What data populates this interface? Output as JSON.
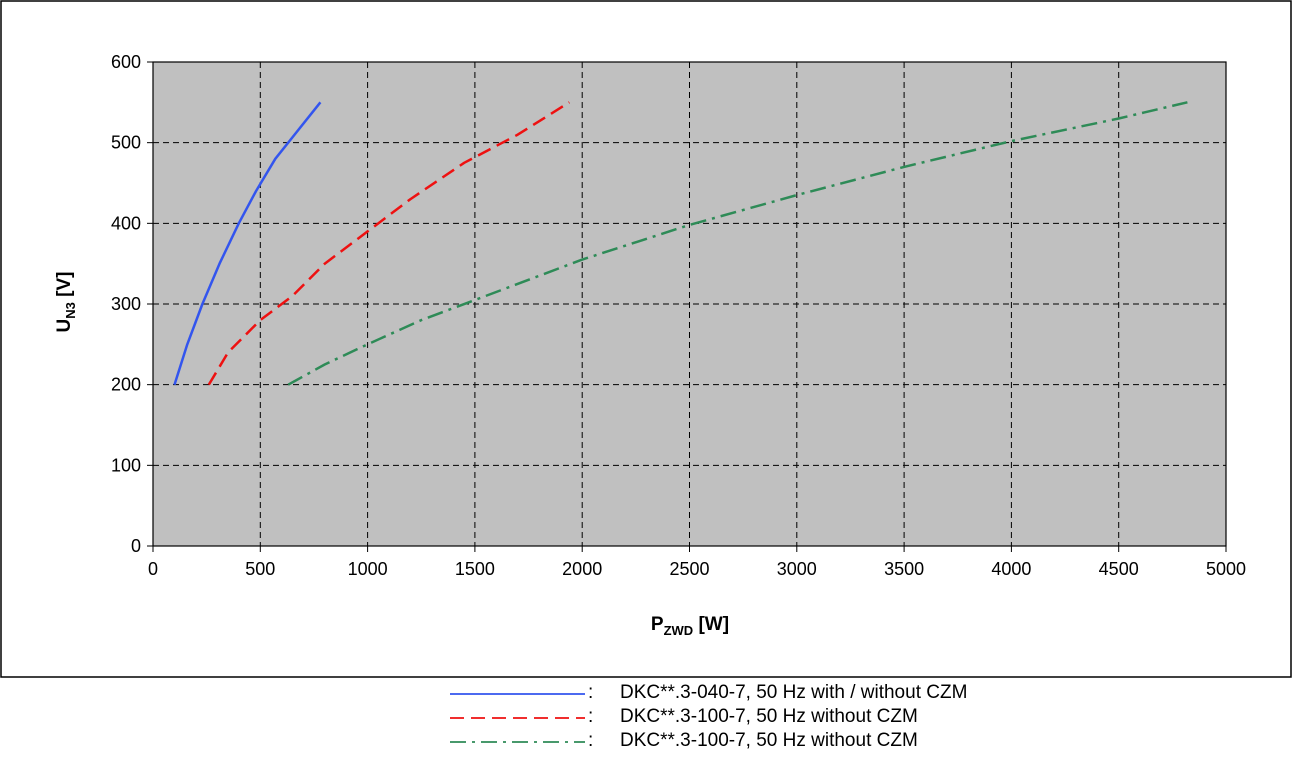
{
  "chart_data": {
    "type": "line",
    "xlabel": {
      "main": "P",
      "sub": "ZWD",
      "unit": " [W]"
    },
    "ylabel": {
      "main": "U",
      "sub": "N3",
      "unit": " [V]"
    },
    "xlim": [
      0,
      5000
    ],
    "ylim": [
      0,
      600
    ],
    "xticks": [
      0,
      500,
      1000,
      1500,
      2000,
      2500,
      3000,
      3500,
      4000,
      4500,
      5000
    ],
    "yticks": [
      0,
      100,
      200,
      300,
      400,
      500,
      600
    ],
    "grid": true,
    "plot_background": "#c0c0c0",
    "legend_position": "below chart",
    "series": [
      {
        "legend_label": "DKC**.3-040-7, 50 Hz with / without CZM",
        "color": "#3355ee",
        "dash": "solid",
        "x": [
          100,
          160,
          230,
          310,
          400,
          480,
          570,
          660,
          780
        ],
        "y": [
          200,
          250,
          300,
          350,
          400,
          440,
          480,
          510,
          550
        ]
      },
      {
        "legend_label": "DKC**.3-100-7, 50 Hz without CZM",
        "color": "#ee1111",
        "dash": "dashed",
        "x": [
          260,
          350,
          500,
          650,
          800,
          1000,
          1200,
          1450,
          1700,
          1940
        ],
        "y": [
          200,
          240,
          280,
          310,
          350,
          390,
          430,
          475,
          510,
          550
        ]
      },
      {
        "legend_label": "DKC**.3-100-7, 50 Hz without CZM",
        "color": "#2e8b57",
        "dash": "dash-dot",
        "x": [
          630,
          800,
          1000,
          1250,
          1500,
          2000,
          2500,
          3000,
          3500,
          4000,
          4500,
          4820
        ],
        "y": [
          200,
          225,
          250,
          280,
          305,
          355,
          398,
          435,
          470,
          502,
          530,
          550
        ]
      }
    ]
  },
  "legend": {
    "separator": ":"
  }
}
